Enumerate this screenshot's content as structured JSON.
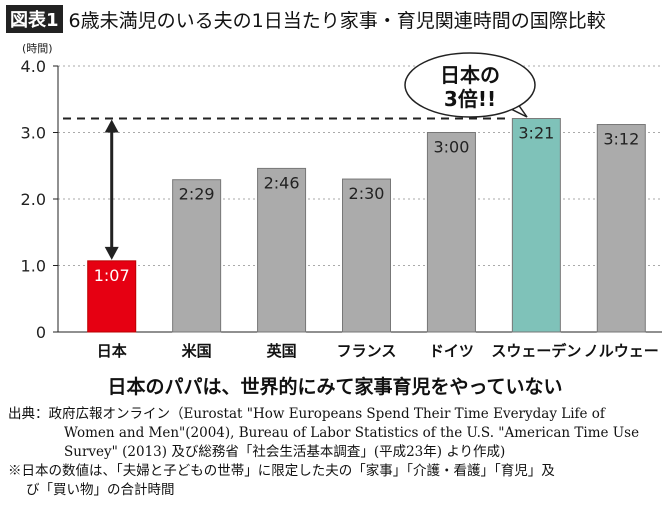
{
  "title": {
    "badge": "図表1",
    "text": "6歳未満児のいる夫の1日当たり家事・育児関連時間の国際比較"
  },
  "chart_data": {
    "type": "bar",
    "ylabel": "(時間)",
    "ylim": [
      0,
      4
    ],
    "yticks": [
      "0",
      "1.0",
      "2.0",
      "3.0",
      "4.0"
    ],
    "grid": true,
    "categories": [
      "日本",
      "米国",
      "英国",
      "フランス",
      "ドイツ",
      "スウェーデン",
      "ノルウェー"
    ],
    "values": [
      1.07,
      2.29,
      2.46,
      2.3,
      3.0,
      3.21,
      3.12
    ],
    "data_labels": [
      "1:07",
      "2:29",
      "2:46",
      "2:30",
      "3:00",
      "3:21",
      "3:12"
    ],
    "colors": [
      "#e60012",
      "#ababab",
      "#ababab",
      "#ababab",
      "#ababab",
      "#7fc2b9",
      "#ababab"
    ],
    "reference_line": 3.21,
    "annotation": {
      "line1": "日本の",
      "line2": "3倍!!"
    }
  },
  "subtitle": "日本のパパは、世界的にみて家事育児をやっていない",
  "source": {
    "line1": "出典：政府広報オンライン（Eurostat \"How Europeans Spend Their Time Everyday Life of",
    "line2": "Women and Men\"(2004), Bureau of Labor Statistics of the U.S. \"American Time Use",
    "line3": "Survey\" (2013) 及び総務省「社会生活基本調査」(平成23年) より作成)",
    "note1": "※日本の数値は、「夫婦と子どもの世帯」に限定した夫の「家事」「介護・看護」「育児」及",
    "note2": "び「買い物」の合計時間"
  }
}
